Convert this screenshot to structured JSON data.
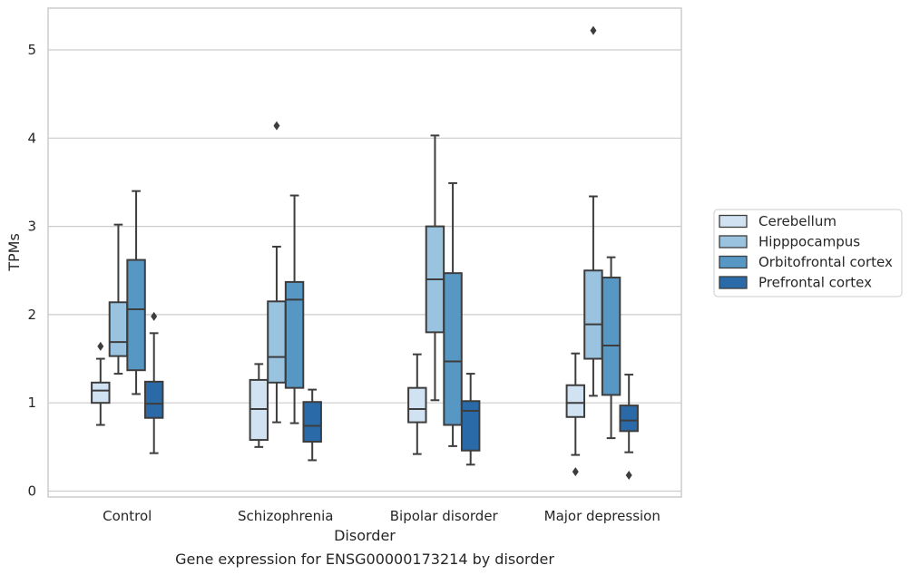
{
  "chart_data": {
    "type": "box",
    "xlabel": "Disorder",
    "ylabel": "TPMs",
    "caption": "Gene expression for ENSG00000173214 by disorder",
    "ylim": [
      -0.07,
      5.5
    ],
    "yticks": [
      "0",
      "1",
      "2",
      "3",
      "4",
      "5"
    ],
    "grid": true,
    "legend_position": "right",
    "categories": [
      "Control",
      "Schizophrenia",
      "Bipolar disorder",
      "Major depression"
    ],
    "series": [
      {
        "name": "Cerebellum",
        "color": "#d1e2f2",
        "boxes": [
          {
            "whisker_low": 0.75,
            "q1": 1.0,
            "median": 1.14,
            "q3": 1.23,
            "whisker_high": 1.5,
            "outliers": [
              1.64
            ]
          },
          {
            "whisker_low": 0.5,
            "q1": 0.58,
            "median": 0.93,
            "q3": 1.26,
            "whisker_high": 1.44,
            "outliers": []
          },
          {
            "whisker_low": 0.42,
            "q1": 0.78,
            "median": 0.93,
            "q3": 1.17,
            "whisker_high": 1.55,
            "outliers": []
          },
          {
            "whisker_low": 0.41,
            "q1": 0.84,
            "median": 1.0,
            "q3": 1.2,
            "whisker_high": 1.56,
            "outliers": [
              0.22
            ]
          }
        ]
      },
      {
        "name": "Hipppocampus",
        "color": "#99c3df",
        "boxes": [
          {
            "whisker_low": 1.33,
            "q1": 1.53,
            "median": 1.69,
            "q3": 2.14,
            "whisker_high": 3.02,
            "outliers": []
          },
          {
            "whisker_low": 0.78,
            "q1": 1.23,
            "median": 1.52,
            "q3": 2.15,
            "whisker_high": 2.77,
            "outliers": [
              4.14
            ]
          },
          {
            "whisker_low": 1.03,
            "q1": 1.8,
            "median": 2.4,
            "q3": 3.0,
            "whisker_high": 4.03,
            "outliers": []
          },
          {
            "whisker_low": 1.08,
            "q1": 1.5,
            "median": 1.89,
            "q3": 2.5,
            "whisker_high": 3.34,
            "outliers": [
              5.22
            ]
          }
        ]
      },
      {
        "name": "Orbitofrontal cortex",
        "color": "#5797c4",
        "boxes": [
          {
            "whisker_low": 1.1,
            "q1": 1.37,
            "median": 2.06,
            "q3": 2.62,
            "whisker_high": 3.4,
            "outliers": []
          },
          {
            "whisker_low": 0.77,
            "q1": 1.17,
            "median": 2.17,
            "q3": 2.37,
            "whisker_high": 3.35,
            "outliers": []
          },
          {
            "whisker_low": 0.51,
            "q1": 0.75,
            "median": 1.47,
            "q3": 2.47,
            "whisker_high": 3.49,
            "outliers": []
          },
          {
            "whisker_low": 0.6,
            "q1": 1.09,
            "median": 1.65,
            "q3": 2.42,
            "whisker_high": 2.65,
            "outliers": []
          }
        ]
      },
      {
        "name": "Prefrontal cortex",
        "color": "#2b6aa8",
        "boxes": [
          {
            "whisker_low": 0.43,
            "q1": 0.83,
            "median": 0.99,
            "q3": 1.24,
            "whisker_high": 1.79,
            "outliers": [
              1.98
            ]
          },
          {
            "whisker_low": 0.35,
            "q1": 0.56,
            "median": 0.74,
            "q3": 1.01,
            "whisker_high": 1.15,
            "outliers": []
          },
          {
            "whisker_low": 0.3,
            "q1": 0.46,
            "median": 0.91,
            "q3": 1.02,
            "whisker_high": 1.33,
            "outliers": []
          },
          {
            "whisker_low": 0.44,
            "q1": 0.68,
            "median": 0.8,
            "q3": 0.97,
            "whisker_high": 1.32,
            "outliers": [
              0.18
            ]
          }
        ]
      }
    ]
  }
}
